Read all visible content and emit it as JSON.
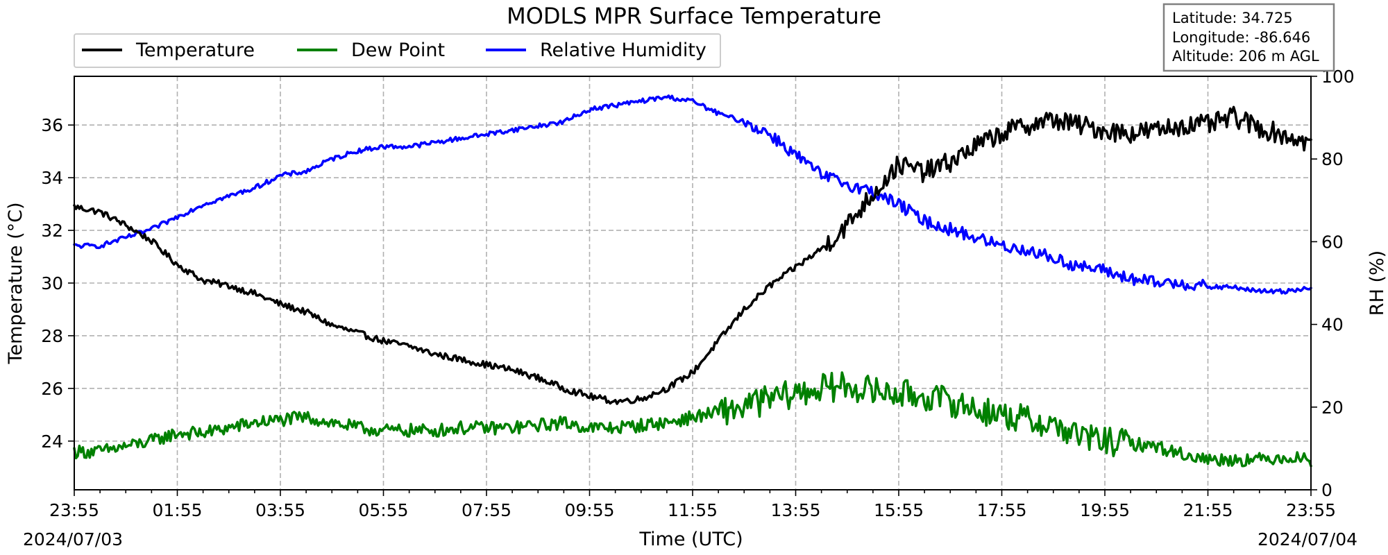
{
  "chart_data": {
    "type": "line",
    "title": "MODLS MPR Surface Temperature",
    "xlabel": "Time (UTC)",
    "ylabel": "Temperature ($^\\circ$C)",
    "ylabel_display": "Temperature (°C)",
    "y2label": "RH (%)",
    "x_tick_labels": [
      "23:55",
      "01:55",
      "03:55",
      "05:55",
      "07:55",
      "09:55",
      "11:55",
      "13:55",
      "15:55",
      "17:55",
      "19:55",
      "21:55",
      "23:55"
    ],
    "x_range_hours": [
      0,
      24
    ],
    "date_start": "2024/07/03",
    "date_end": "2024/07/04",
    "ylim": [
      22.15,
      37.85
    ],
    "y_ticks": [
      24,
      26,
      28,
      30,
      32,
      34,
      36
    ],
    "y2lim": [
      0,
      100
    ],
    "y2_ticks": [
      0,
      20,
      40,
      60,
      80,
      100
    ],
    "grid": true,
    "legend_position": "top-left, above plot",
    "series": [
      {
        "name": "Temperature",
        "color": "#000000",
        "axis": "left",
        "noise": 0.12,
        "points": [
          [
            0,
            32.9
          ],
          [
            0.5,
            32.7
          ],
          [
            1,
            32.2
          ],
          [
            1.5,
            31.6
          ],
          [
            2,
            30.7
          ],
          [
            2.5,
            30.1
          ],
          [
            3,
            29.9
          ],
          [
            3.5,
            29.6
          ],
          [
            4,
            29.2
          ],
          [
            4.5,
            28.9
          ],
          [
            5,
            28.4
          ],
          [
            5.5,
            28.1
          ],
          [
            6,
            27.8
          ],
          [
            6.5,
            27.6
          ],
          [
            7,
            27.3
          ],
          [
            7.5,
            27.1
          ],
          [
            8,
            26.9
          ],
          [
            8.5,
            26.7
          ],
          [
            9,
            26.4
          ],
          [
            9.5,
            26.0
          ],
          [
            10,
            25.7
          ],
          [
            10.5,
            25.5
          ],
          [
            11,
            25.6
          ],
          [
            11.5,
            26.0
          ],
          [
            12,
            26.6
          ],
          [
            12.5,
            27.8
          ],
          [
            13,
            29.0
          ],
          [
            13.5,
            29.9
          ],
          [
            14,
            30.6
          ],
          [
            14.5,
            31.3
          ],
          [
            15,
            32.2
          ],
          [
            15.5,
            33.4
          ],
          [
            16,
            34.5
          ],
          [
            16.5,
            34.2
          ],
          [
            17,
            34.6
          ],
          [
            17.5,
            35.2
          ],
          [
            18,
            35.7
          ],
          [
            18.5,
            36.0
          ],
          [
            19,
            36.2
          ],
          [
            19.5,
            36.0
          ],
          [
            20,
            35.8
          ],
          [
            20.5,
            35.7
          ],
          [
            21,
            35.8
          ],
          [
            21.5,
            36.0
          ],
          [
            22,
            36.0
          ],
          [
            22.5,
            36.3
          ],
          [
            23,
            35.9
          ],
          [
            23.5,
            35.6
          ],
          [
            24,
            35.3
          ]
        ]
      },
      {
        "name": "Dew Point",
        "color": "#008000",
        "axis": "left",
        "noise": 0.25,
        "points": [
          [
            0,
            23.6
          ],
          [
            0.5,
            23.6
          ],
          [
            1,
            23.8
          ],
          [
            1.5,
            24.0
          ],
          [
            2,
            24.3
          ],
          [
            2.5,
            24.3
          ],
          [
            3,
            24.5
          ],
          [
            3.5,
            24.7
          ],
          [
            4,
            24.8
          ],
          [
            4.5,
            24.9
          ],
          [
            5,
            24.7
          ],
          [
            5.5,
            24.5
          ],
          [
            6,
            24.4
          ],
          [
            6.5,
            24.4
          ],
          [
            7,
            24.4
          ],
          [
            7.5,
            24.5
          ],
          [
            8,
            24.5
          ],
          [
            8.5,
            24.5
          ],
          [
            9,
            24.6
          ],
          [
            9.5,
            24.7
          ],
          [
            10,
            24.5
          ],
          [
            10.5,
            24.5
          ],
          [
            11,
            24.6
          ],
          [
            11.5,
            24.7
          ],
          [
            12,
            24.9
          ],
          [
            12.5,
            25.1
          ],
          [
            13,
            25.3
          ],
          [
            13.5,
            25.6
          ],
          [
            14,
            25.8
          ],
          [
            14.5,
            26.0
          ],
          [
            15,
            26.1
          ],
          [
            15.5,
            25.9
          ],
          [
            16,
            25.8
          ],
          [
            16.5,
            25.7
          ],
          [
            17,
            25.5
          ],
          [
            17.5,
            25.2
          ],
          [
            18,
            25.0
          ],
          [
            18.5,
            24.8
          ],
          [
            19,
            24.6
          ],
          [
            19.5,
            24.2
          ],
          [
            20,
            24.0
          ],
          [
            20.5,
            23.9
          ],
          [
            21,
            23.8
          ],
          [
            21.5,
            23.5
          ],
          [
            22,
            23.3
          ],
          [
            22.5,
            23.3
          ],
          [
            23,
            23.3
          ],
          [
            23.5,
            23.4
          ],
          [
            24,
            23.3
          ]
        ]
      },
      {
        "name": "Relative Humidity",
        "color": "#0000ff",
        "axis": "right",
        "noise": 0.55,
        "points": [
          [
            0,
            59
          ],
          [
            0.5,
            59
          ],
          [
            1,
            61
          ],
          [
            1.5,
            63
          ],
          [
            2,
            66
          ],
          [
            2.5,
            69
          ],
          [
            3,
            71
          ],
          [
            3.5,
            73
          ],
          [
            4,
            76
          ],
          [
            4.5,
            77
          ],
          [
            5,
            80
          ],
          [
            5.5,
            82
          ],
          [
            6,
            83
          ],
          [
            6.5,
            83
          ],
          [
            7,
            84
          ],
          [
            7.5,
            85
          ],
          [
            8,
            86
          ],
          [
            8.5,
            87
          ],
          [
            9,
            88
          ],
          [
            9.5,
            89
          ],
          [
            10,
            92
          ],
          [
            10.5,
            93
          ],
          [
            11,
            94
          ],
          [
            11.5,
            95
          ],
          [
            12,
            94
          ],
          [
            12.5,
            91
          ],
          [
            13,
            89
          ],
          [
            13.5,
            86
          ],
          [
            14,
            81
          ],
          [
            14.5,
            76
          ],
          [
            15,
            74
          ],
          [
            15.5,
            72
          ],
          [
            16,
            69
          ],
          [
            16.5,
            65
          ],
          [
            17,
            63
          ],
          [
            17.5,
            61
          ],
          [
            18,
            59
          ],
          [
            18.5,
            58
          ],
          [
            19,
            56
          ],
          [
            19.5,
            54
          ],
          [
            20,
            53
          ],
          [
            20.5,
            51
          ],
          [
            21,
            50
          ],
          [
            21.5,
            50
          ],
          [
            22,
            49
          ],
          [
            22.5,
            49
          ],
          [
            23,
            48
          ],
          [
            23.5,
            48
          ],
          [
            24,
            49
          ]
        ]
      }
    ],
    "info_box": [
      "Latitude: 34.725",
      "Longitude: -86.646",
      "Altitude: 206 m AGL"
    ]
  }
}
